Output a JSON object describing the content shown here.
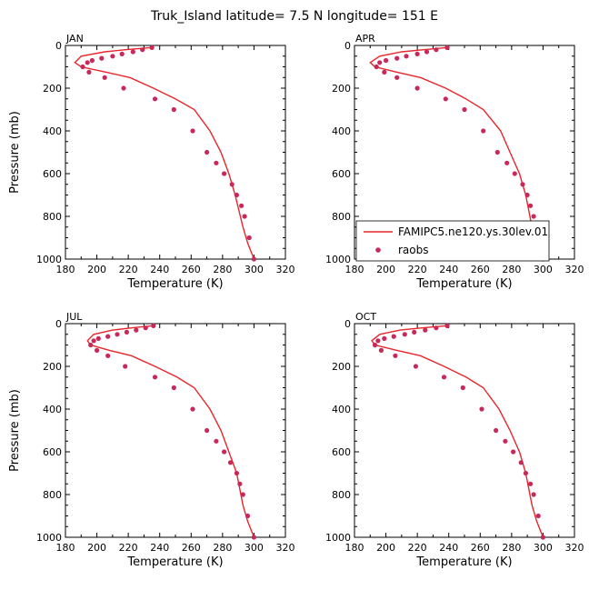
{
  "title": "Truk_Island   latitude= 7.5 N longitude= 151 E",
  "colors": {
    "model": "#e8262b",
    "obs": "#c8285a",
    "axis": "#000000"
  },
  "legend": {
    "model_label": "FAMIPC5.ne120.ys.30lev.01",
    "obs_label": "raobs",
    "placement": "bottom-right of APR panel"
  },
  "axes": {
    "xlabel": "Temperature (K)",
    "ylabel": "Pressure (mb)",
    "xlim": [
      180,
      320
    ],
    "ylim": [
      0,
      1000
    ],
    "y_inverted": true,
    "xticks": [
      "180",
      "200",
      "220",
      "240",
      "260",
      "280",
      "300",
      "320"
    ],
    "yticks": [
      "0",
      "200",
      "400",
      "600",
      "800",
      "1000"
    ]
  },
  "chart_data": [
    {
      "type": "line",
      "panel": "JAN",
      "series": [
        {
          "name": "FAMIPC5.ne120.ys.30lev.01",
          "x": [
            234,
            218,
            205,
            190,
            186,
            190,
            206,
            221,
            236,
            250,
            262,
            272,
            279,
            284,
            288,
            293,
            296,
            300
          ],
          "y": [
            10,
            20,
            30,
            50,
            80,
            100,
            125,
            150,
            200,
            250,
            300,
            400,
            500,
            600,
            700,
            850,
            925,
            1000
          ]
        },
        {
          "name": "raobs",
          "x": [
            235,
            229,
            223,
            216,
            210,
            203,
            197,
            194,
            191,
            195,
            205,
            217,
            237,
            249,
            261,
            270,
            276,
            281,
            286,
            289,
            292,
            294,
            297,
            300
          ],
          "y": [
            10,
            20,
            30,
            40,
            50,
            60,
            70,
            80,
            100,
            125,
            150,
            200,
            250,
            300,
            400,
            500,
            550,
            600,
            650,
            700,
            750,
            800,
            900,
            1000
          ]
        }
      ]
    },
    {
      "type": "line",
      "panel": "APR",
      "series": [
        {
          "name": "FAMIPC5.ne120.ys.30lev.01",
          "x": [
            238,
            224,
            210,
            196,
            190,
            193,
            207,
            222,
            238,
            251,
            262,
            273,
            279,
            285,
            289,
            293,
            296,
            300
          ],
          "y": [
            10,
            20,
            30,
            50,
            80,
            100,
            125,
            150,
            200,
            250,
            300,
            400,
            500,
            600,
            700,
            850,
            925,
            1000
          ]
        },
        {
          "name": "raobs",
          "x": [
            239,
            232,
            226,
            220,
            213,
            207,
            200,
            196,
            194,
            199,
            207,
            220,
            238,
            250,
            262,
            271,
            277,
            282,
            287,
            290,
            292,
            294,
            297,
            300
          ],
          "y": [
            10,
            20,
            30,
            40,
            50,
            60,
            70,
            80,
            100,
            125,
            150,
            200,
            250,
            300,
            400,
            500,
            550,
            600,
            650,
            700,
            750,
            800,
            900,
            1000
          ]
        }
      ]
    },
    {
      "type": "line",
      "panel": "JUL",
      "series": [
        {
          "name": "FAMIPC5.ne120.ys.30lev.01",
          "x": [
            235,
            222,
            210,
            198,
            194,
            196,
            208,
            222,
            237,
            251,
            262,
            272,
            279,
            284,
            289,
            293,
            296,
            300
          ],
          "y": [
            10,
            20,
            30,
            50,
            80,
            100,
            125,
            150,
            200,
            250,
            300,
            400,
            500,
            600,
            700,
            850,
            925,
            1000
          ]
        },
        {
          "name": "raobs",
          "x": [
            236,
            231,
            225,
            219,
            213,
            207,
            201,
            198,
            196,
            200,
            207,
            218,
            237,
            249,
            261,
            270,
            276,
            281,
            285,
            289,
            291,
            293,
            296,
            300
          ],
          "y": [
            10,
            20,
            30,
            40,
            50,
            60,
            70,
            80,
            100,
            125,
            150,
            200,
            250,
            300,
            400,
            500,
            550,
            600,
            650,
            700,
            750,
            800,
            900,
            1000
          ]
        }
      ]
    },
    {
      "type": "line",
      "panel": "OCT",
      "series": [
        {
          "name": "FAMIPC5.ne120.ys.30lev.01",
          "x": [
            238,
            223,
            209,
            196,
            191,
            193,
            207,
            222,
            237,
            251,
            262,
            272,
            279,
            285,
            289,
            293,
            296,
            300
          ],
          "y": [
            10,
            20,
            30,
            50,
            80,
            100,
            125,
            150,
            200,
            250,
            300,
            400,
            500,
            600,
            700,
            850,
            925,
            1000
          ]
        },
        {
          "name": "raobs",
          "x": [
            239,
            232,
            225,
            218,
            212,
            205,
            199,
            195,
            193,
            197,
            206,
            219,
            237,
            249,
            261,
            270,
            276,
            281,
            286,
            289,
            292,
            294,
            297,
            300
          ],
          "y": [
            10,
            20,
            30,
            40,
            50,
            60,
            70,
            80,
            100,
            125,
            150,
            200,
            250,
            300,
            400,
            500,
            550,
            600,
            650,
            700,
            750,
            800,
            900,
            1000
          ]
        }
      ]
    }
  ]
}
